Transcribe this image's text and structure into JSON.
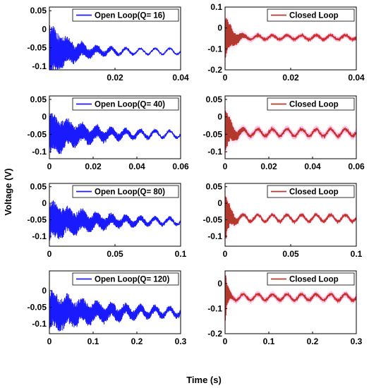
{
  "figure": {
    "xlabel": "Time (s)",
    "ylabel": "Voltage (V)"
  },
  "colors": {
    "open_loop": "#1a1aff",
    "closed_loop_line": "#b03a2e",
    "closed_loop_band": "#ff1a1a",
    "closed_loop_halo": "#ffb3e6"
  },
  "chart_data": [
    {
      "type": "line",
      "series": [
        {
          "name": "Open Loop(Q= 16)"
        }
      ],
      "xlim": [
        0,
        0.04
      ],
      "ylim": [
        -0.11,
        0.06
      ],
      "xticks": [
        0.02,
        0.04
      ],
      "xtick_labels": [
        "0.02",
        "0.04"
      ],
      "yticks": [
        0.05,
        0,
        -0.05,
        -0.1
      ],
      "ytick_labels": [
        "0.05",
        "0",
        "-0.05",
        "-0.1"
      ],
      "settle": -0.06,
      "initial_amplitude": 0.075,
      "decay_fraction_of_span": 0.18,
      "ripple": 0.008,
      "band_half_width": 0,
      "legend": "top-right"
    },
    {
      "type": "line",
      "series": [
        {
          "name": "Closed Loop"
        }
      ],
      "xlim": [
        0,
        0.04
      ],
      "ylim": [
        -0.2,
        0.1
      ],
      "xticks": [
        0,
        0.02,
        0.04
      ],
      "xtick_labels": [
        "0",
        "0.02",
        "0.04"
      ],
      "yticks": [
        0.1,
        0,
        -0.1,
        -0.2
      ],
      "ytick_labels": [
        "0.1",
        "0",
        "-0.1",
        "-0.2"
      ],
      "settle": -0.045,
      "initial_amplitude": 0.11,
      "decay_fraction_of_span": 0.06,
      "ripple": 0.01,
      "band_half_width": 0.012,
      "legend": "top-right"
    },
    {
      "type": "line",
      "series": [
        {
          "name": "Open Loop(Q= 40)"
        }
      ],
      "xlim": [
        0,
        0.06
      ],
      "ylim": [
        -0.12,
        0.06
      ],
      "xticks": [
        0,
        0.02,
        0.04,
        0.06
      ],
      "xtick_labels": [
        "0",
        "0.02",
        "0.04",
        "0.06"
      ],
      "yticks": [
        0.05,
        0,
        -0.05,
        -0.1
      ],
      "ytick_labels": [
        "0.05",
        "0",
        "-0.05",
        "-0.1"
      ],
      "settle": -0.05,
      "initial_amplitude": 0.06,
      "decay_fraction_of_span": 0.3,
      "ripple": 0.01,
      "band_half_width": 0,
      "legend": "top-right"
    },
    {
      "type": "line",
      "series": [
        {
          "name": "Closed Loop"
        }
      ],
      "xlim": [
        0,
        0.06
      ],
      "ylim": [
        -0.12,
        0.06
      ],
      "xticks": [
        0,
        0.02,
        0.04,
        0.06
      ],
      "xtick_labels": [
        "0",
        "0.02",
        "0.04",
        "0.06"
      ],
      "yticks": [
        0.05,
        0,
        -0.05,
        -0.1
      ],
      "ytick_labels": [
        "0.05",
        "0",
        "-0.05",
        "-0.1"
      ],
      "settle": -0.045,
      "initial_amplitude": 0.07,
      "decay_fraction_of_span": 0.05,
      "ripple": 0.01,
      "band_half_width": 0.01,
      "legend": "top-right"
    },
    {
      "type": "line",
      "series": [
        {
          "name": "Open Loop(Q= 80)"
        }
      ],
      "xlim": [
        0,
        0.1
      ],
      "ylim": [
        -0.13,
        0.06
      ],
      "xticks": [
        0,
        0.05,
        0.1
      ],
      "xtick_labels": [
        "0",
        "0.05",
        "0.1"
      ],
      "yticks": [
        0.05,
        0,
        -0.05,
        -0.1
      ],
      "ytick_labels": [
        "0.05",
        "0",
        "-0.05",
        "-0.1"
      ],
      "settle": -0.055,
      "initial_amplitude": 0.06,
      "decay_fraction_of_span": 0.35,
      "ripple": 0.01,
      "band_half_width": 0,
      "legend": "top-right"
    },
    {
      "type": "line",
      "series": [
        {
          "name": "Closed Loop"
        }
      ],
      "xlim": [
        0,
        0.1
      ],
      "ylim": [
        -0.13,
        0.06
      ],
      "xticks": [
        0,
        0.05,
        0.1
      ],
      "xtick_labels": [
        "0",
        "0.05",
        "0.1"
      ],
      "yticks": [
        0.05,
        0,
        -0.05,
        -0.1
      ],
      "ytick_labels": [
        "0.05",
        "0",
        "-0.05",
        "-0.1"
      ],
      "settle": -0.045,
      "initial_amplitude": 0.08,
      "decay_fraction_of_span": 0.04,
      "ripple": 0.01,
      "band_half_width": 0.006,
      "legend": "top-right"
    },
    {
      "type": "line",
      "series": [
        {
          "name": "Open Loop(Q= 120)"
        }
      ],
      "xlim": [
        0,
        0.3
      ],
      "ylim": [
        -0.13,
        0.06
      ],
      "xticks": [
        0,
        0.1,
        0.2,
        0.3
      ],
      "xtick_labels": [
        "0",
        "0.1",
        "0.2",
        "0.3"
      ],
      "yticks": [
        0,
        -0.05,
        -0.1
      ],
      "ytick_labels": [
        "0",
        "-0.05",
        "-0.1"
      ],
      "settle": -0.065,
      "initial_amplitude": 0.06,
      "decay_fraction_of_span": 0.45,
      "ripple": 0.012,
      "band_half_width": 0,
      "legend": "top-right"
    },
    {
      "type": "line",
      "series": [
        {
          "name": "Closed Loop"
        }
      ],
      "xlim": [
        0,
        0.3
      ],
      "ylim": [
        -0.2,
        0.05
      ],
      "xticks": [
        0,
        0.1,
        0.2,
        0.3
      ],
      "xtick_labels": [
        "0",
        "0.1",
        "0.2",
        "0.3"
      ],
      "yticks": [
        0,
        -0.1,
        -0.2
      ],
      "ytick_labels": [
        "0",
        "-0.1",
        "-0.2"
      ],
      "settle": -0.055,
      "initial_amplitude": 0.11,
      "decay_fraction_of_span": 0.02,
      "ripple": 0.012,
      "band_half_width": 0.012,
      "legend": "top-right"
    }
  ]
}
